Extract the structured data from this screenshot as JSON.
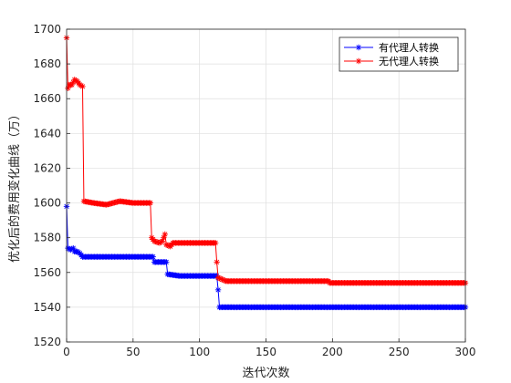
{
  "chart_data": {
    "type": "line",
    "title": "",
    "xlabel": "迭代次数",
    "ylabel": "优化后的费用变化曲线（万）",
    "xlim": [
      0,
      300
    ],
    "ylim": [
      1520,
      1700
    ],
    "xticks": [
      0,
      50,
      100,
      150,
      200,
      250,
      300
    ],
    "yticks": [
      1520,
      1540,
      1560,
      1580,
      1600,
      1620,
      1640,
      1660,
      1680,
      1700
    ],
    "grid": true,
    "legend_position": "top-right",
    "marker": "asterisk",
    "series": [
      {
        "name": "有代理人转换",
        "color": "#0000ff",
        "points": [
          [
            0,
            1598
          ],
          [
            1,
            1574
          ],
          [
            3,
            1573
          ],
          [
            5,
            1574
          ],
          [
            6,
            1572
          ],
          [
            8,
            1572
          ],
          [
            10,
            1571
          ],
          [
            12,
            1569
          ],
          [
            20,
            1569
          ],
          [
            40,
            1569
          ],
          [
            60,
            1569
          ],
          [
            65,
            1569
          ],
          [
            66,
            1566
          ],
          [
            75,
            1566
          ],
          [
            76,
            1559
          ],
          [
            85,
            1558
          ],
          [
            100,
            1558
          ],
          [
            113,
            1558
          ],
          [
            114,
            1550
          ],
          [
            115,
            1540
          ],
          [
            150,
            1540
          ],
          [
            200,
            1540
          ],
          [
            250,
            1540
          ],
          [
            300,
            1540
          ]
        ]
      },
      {
        "name": "无代理人转换",
        "color": "#ff0000",
        "points": [
          [
            0,
            1695
          ],
          [
            1,
            1666
          ],
          [
            2,
            1668
          ],
          [
            4,
            1668
          ],
          [
            6,
            1671
          ],
          [
            8,
            1670
          ],
          [
            10,
            1668
          ],
          [
            12,
            1667
          ],
          [
            13,
            1601
          ],
          [
            20,
            1600
          ],
          [
            30,
            1599
          ],
          [
            40,
            1601
          ],
          [
            50,
            1600
          ],
          [
            60,
            1600
          ],
          [
            63,
            1600
          ],
          [
            64,
            1580
          ],
          [
            66,
            1578
          ],
          [
            70,
            1577
          ],
          [
            72,
            1578
          ],
          [
            74,
            1582
          ],
          [
            75,
            1576
          ],
          [
            78,
            1575
          ],
          [
            80,
            1577
          ],
          [
            90,
            1577
          ],
          [
            100,
            1577
          ],
          [
            112,
            1577
          ],
          [
            113,
            1566
          ],
          [
            114,
            1557
          ],
          [
            120,
            1555
          ],
          [
            150,
            1555
          ],
          [
            197,
            1555
          ],
          [
            198,
            1554
          ],
          [
            250,
            1554
          ],
          [
            300,
            1554
          ]
        ]
      }
    ]
  }
}
